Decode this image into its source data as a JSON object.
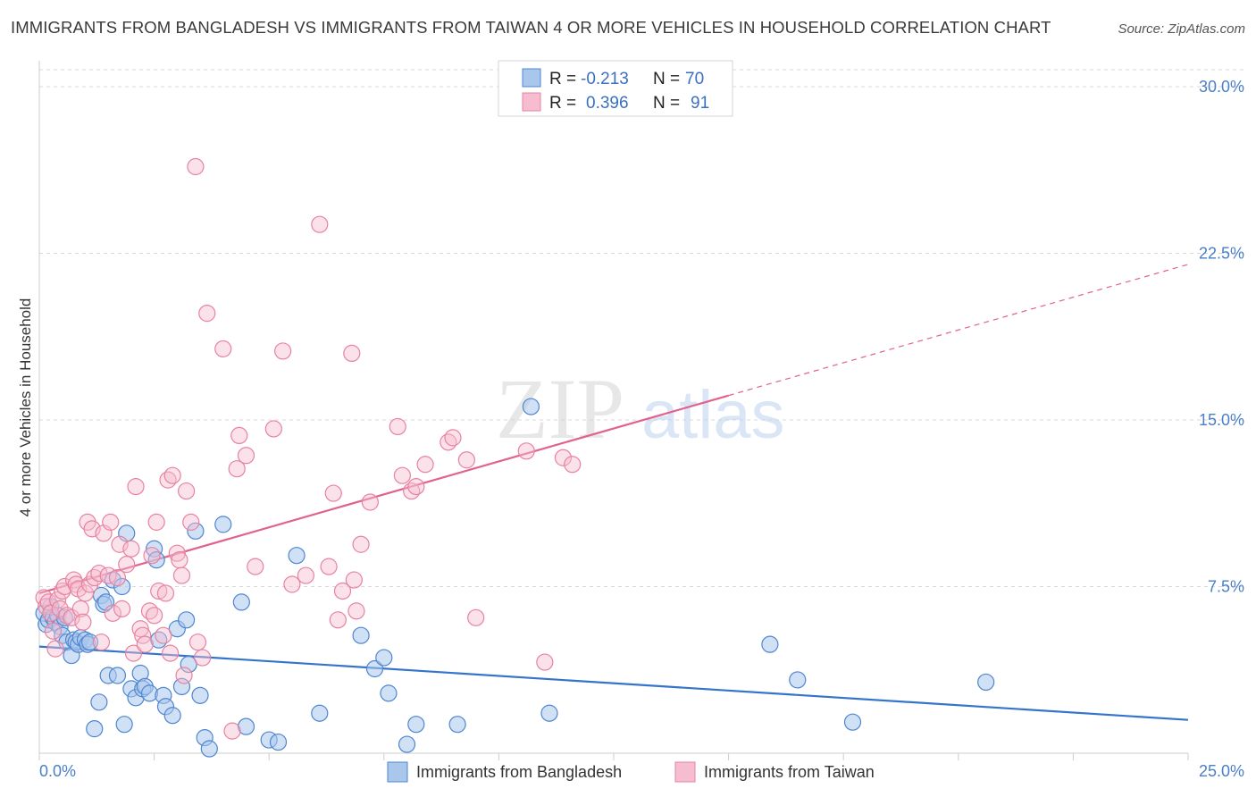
{
  "title": "IMMIGRANTS FROM BANGLADESH VS IMMIGRANTS FROM TAIWAN 4 OR MORE VEHICLES IN HOUSEHOLD CORRELATION CHART",
  "source": "Source: ZipAtlas.com",
  "colors": {
    "bangladesh_fill": "#a9c6ec",
    "bangladesh_stroke": "#4f86cf",
    "bangladesh_line": "#3474cc",
    "taiwan_fill": "#f6bcd0",
    "taiwan_stroke": "#e7839f",
    "taiwan_line": "#e0628e",
    "axis_text": "#4a7fc9",
    "grid": "#d9d9d9"
  },
  "legend": {
    "row1": {
      "r_label": "R =",
      "r_value": "-0.213",
      "n_label": "N =",
      "n_value": "70"
    },
    "row2": {
      "r_label": "R =",
      "r_value": "0.396",
      "n_label": "N =",
      "n_value": "91"
    }
  },
  "watermark": {
    "zip": "ZIP",
    "atlas": "atlas"
  },
  "chart_data": {
    "type": "scatter",
    "title": "IMMIGRANTS FROM BANGLADESH VS IMMIGRANTS FROM TAIWAN 4 OR MORE VEHICLES IN HOUSEHOLD CORRELATION CHART",
    "xlabel": "",
    "ylabel": "4 or more Vehicles in Household",
    "xlim": [
      0,
      25
    ],
    "ylim": [
      0,
      30
    ],
    "x_tick_labels": [
      "0.0%",
      "25.0%"
    ],
    "y_ticks": [
      7.5,
      15.0,
      22.5,
      30.0
    ],
    "y_tick_labels": [
      "7.5%",
      "15.0%",
      "22.5%",
      "30.0%"
    ],
    "grid": true,
    "legend_position": "top-center",
    "series": [
      {
        "name": "Immigrants from Bangladesh",
        "color": "#4f86cf",
        "r": -0.213,
        "n": 70,
        "trend": {
          "x": [
            0,
            25
          ],
          "y": [
            4.8,
            1.5
          ]
        },
        "points": [
          [
            0.1,
            6.3
          ],
          [
            0.15,
            5.8
          ],
          [
            0.2,
            6.0
          ],
          [
            0.25,
            6.6
          ],
          [
            0.3,
            6.1
          ],
          [
            0.35,
            5.9
          ],
          [
            0.4,
            6.2
          ],
          [
            0.45,
            5.7
          ],
          [
            0.5,
            5.3
          ],
          [
            0.55,
            6.1
          ],
          [
            0.6,
            5.0
          ],
          [
            0.7,
            4.4
          ],
          [
            0.75,
            5.1
          ],
          [
            0.8,
            5.0
          ],
          [
            0.85,
            4.9
          ],
          [
            0.9,
            5.2
          ],
          [
            1.0,
            5.1
          ],
          [
            1.05,
            4.9
          ],
          [
            1.1,
            5.0
          ],
          [
            1.2,
            1.1
          ],
          [
            1.3,
            2.3
          ],
          [
            1.35,
            7.1
          ],
          [
            1.4,
            6.7
          ],
          [
            1.45,
            6.8
          ],
          [
            1.5,
            3.5
          ],
          [
            1.6,
            7.8
          ],
          [
            1.7,
            3.5
          ],
          [
            1.8,
            7.5
          ],
          [
            1.85,
            1.3
          ],
          [
            1.9,
            9.9
          ],
          [
            2.0,
            2.9
          ],
          [
            2.1,
            2.5
          ],
          [
            2.2,
            3.6
          ],
          [
            2.25,
            2.9
          ],
          [
            2.3,
            3.0
          ],
          [
            2.4,
            2.7
          ],
          [
            2.5,
            9.2
          ],
          [
            2.55,
            8.7
          ],
          [
            2.6,
            5.1
          ],
          [
            2.7,
            2.6
          ],
          [
            2.75,
            2.1
          ],
          [
            2.9,
            1.7
          ],
          [
            3.0,
            5.6
          ],
          [
            3.1,
            3.0
          ],
          [
            3.2,
            6.0
          ],
          [
            3.25,
            4.0
          ],
          [
            3.4,
            10.0
          ],
          [
            3.5,
            2.6
          ],
          [
            3.6,
            0.7
          ],
          [
            3.7,
            0.2
          ],
          [
            4.0,
            10.3
          ],
          [
            4.4,
            6.8
          ],
          [
            4.5,
            1.2
          ],
          [
            5.0,
            0.6
          ],
          [
            5.2,
            0.5
          ],
          [
            5.6,
            8.9
          ],
          [
            6.1,
            1.8
          ],
          [
            7.0,
            5.3
          ],
          [
            7.3,
            3.8
          ],
          [
            7.5,
            4.3
          ],
          [
            7.6,
            2.7
          ],
          [
            8.0,
            0.4
          ],
          [
            8.2,
            1.3
          ],
          [
            9.1,
            1.3
          ],
          [
            10.7,
            15.6
          ],
          [
            11.1,
            1.8
          ],
          [
            15.9,
            4.9
          ],
          [
            16.5,
            3.3
          ],
          [
            17.7,
            1.4
          ],
          [
            20.6,
            3.2
          ]
        ]
      },
      {
        "name": "Immigrants from Taiwan",
        "color": "#e7839f",
        "r": 0.396,
        "n": 91,
        "trend": {
          "x": [
            0,
            15
          ],
          "y": [
            7.2,
            16.1
          ]
        },
        "trend_ext": {
          "x": [
            15,
            25
          ],
          "y": [
            16.1,
            22.0
          ]
        },
        "points": [
          [
            0.1,
            7.0
          ],
          [
            0.15,
            6.6
          ],
          [
            0.2,
            6.8
          ],
          [
            0.25,
            6.3
          ],
          [
            0.3,
            5.5
          ],
          [
            0.35,
            4.7
          ],
          [
            0.4,
            6.9
          ],
          [
            0.45,
            6.5
          ],
          [
            0.5,
            7.3
          ],
          [
            0.55,
            7.5
          ],
          [
            0.6,
            6.2
          ],
          [
            0.7,
            6.1
          ],
          [
            0.75,
            7.8
          ],
          [
            0.8,
            7.6
          ],
          [
            0.85,
            7.4
          ],
          [
            0.9,
            6.5
          ],
          [
            0.95,
            5.9
          ],
          [
            1.0,
            7.2
          ],
          [
            1.05,
            10.4
          ],
          [
            1.1,
            7.6
          ],
          [
            1.15,
            10.1
          ],
          [
            1.2,
            7.9
          ],
          [
            1.3,
            8.1
          ],
          [
            1.35,
            5.0
          ],
          [
            1.4,
            9.9
          ],
          [
            1.5,
            8.0
          ],
          [
            1.55,
            10.4
          ],
          [
            1.6,
            6.3
          ],
          [
            1.7,
            7.9
          ],
          [
            1.75,
            9.4
          ],
          [
            1.8,
            6.5
          ],
          [
            1.9,
            8.5
          ],
          [
            2.0,
            9.2
          ],
          [
            2.05,
            4.5
          ],
          [
            2.1,
            12.0
          ],
          [
            2.2,
            5.6
          ],
          [
            2.25,
            5.3
          ],
          [
            2.3,
            4.9
          ],
          [
            2.4,
            6.4
          ],
          [
            2.45,
            8.9
          ],
          [
            2.5,
            6.2
          ],
          [
            2.55,
            10.4
          ],
          [
            2.6,
            7.3
          ],
          [
            2.7,
            5.3
          ],
          [
            2.75,
            7.2
          ],
          [
            2.8,
            12.3
          ],
          [
            2.85,
            4.5
          ],
          [
            2.9,
            12.5
          ],
          [
            3.0,
            9.0
          ],
          [
            3.05,
            8.7
          ],
          [
            3.1,
            8.0
          ],
          [
            3.15,
            3.5
          ],
          [
            3.2,
            11.8
          ],
          [
            3.3,
            10.4
          ],
          [
            3.4,
            26.4
          ],
          [
            3.45,
            5.0
          ],
          [
            3.55,
            4.3
          ],
          [
            3.65,
            19.8
          ],
          [
            4.0,
            18.2
          ],
          [
            4.2,
            1.0
          ],
          [
            4.3,
            12.8
          ],
          [
            4.35,
            14.3
          ],
          [
            4.5,
            13.4
          ],
          [
            4.7,
            8.4
          ],
          [
            5.1,
            14.6
          ],
          [
            5.3,
            18.1
          ],
          [
            5.5,
            7.6
          ],
          [
            5.8,
            8.0
          ],
          [
            6.1,
            23.8
          ],
          [
            6.3,
            8.4
          ],
          [
            6.4,
            11.7
          ],
          [
            6.5,
            6.0
          ],
          [
            6.6,
            7.3
          ],
          [
            6.8,
            18.0
          ],
          [
            6.85,
            7.8
          ],
          [
            6.9,
            6.4
          ],
          [
            7.0,
            9.4
          ],
          [
            7.2,
            11.3
          ],
          [
            7.8,
            14.7
          ],
          [
            7.9,
            12.5
          ],
          [
            8.1,
            11.8
          ],
          [
            8.2,
            12.0
          ],
          [
            8.4,
            13.0
          ],
          [
            8.9,
            14.0
          ],
          [
            9.0,
            14.2
          ],
          [
            9.3,
            13.2
          ],
          [
            9.5,
            6.1
          ],
          [
            10.6,
            13.6
          ],
          [
            11.0,
            4.1
          ],
          [
            11.4,
            13.3
          ],
          [
            11.6,
            13.0
          ]
        ]
      }
    ]
  },
  "bottom_legend": {
    "bangladesh": "Immigrants from Bangladesh",
    "taiwan": "Immigrants from Taiwan"
  }
}
